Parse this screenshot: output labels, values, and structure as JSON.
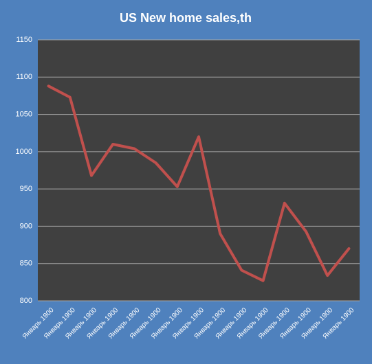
{
  "chart_data": {
    "type": "line",
    "title": "US New home sales,th",
    "categories": [
      "Январь 1900",
      "Январь 1900",
      "Январь 1900",
      "Январь 1900",
      "Январь 1900",
      "Январь 1900",
      "Январь 1900",
      "Январь 1900",
      "Январь 1900",
      "Январь 1900",
      "Январь 1900",
      "Январь 1900",
      "Январь 1900",
      "Январь 1900",
      "Январь 1900"
    ],
    "series": [
      {
        "name": "US New home sales,th",
        "color": "#c0504d",
        "values": [
          1088,
          1073,
          968,
          1010,
          1004,
          985,
          953,
          1020,
          890,
          841,
          827,
          931,
          893,
          834,
          870
        ]
      }
    ],
    "ylim": [
      800,
      1150
    ],
    "yticks": [
      800,
      850,
      900,
      950,
      1000,
      1050,
      1100,
      1150
    ],
    "grid": true
  }
}
